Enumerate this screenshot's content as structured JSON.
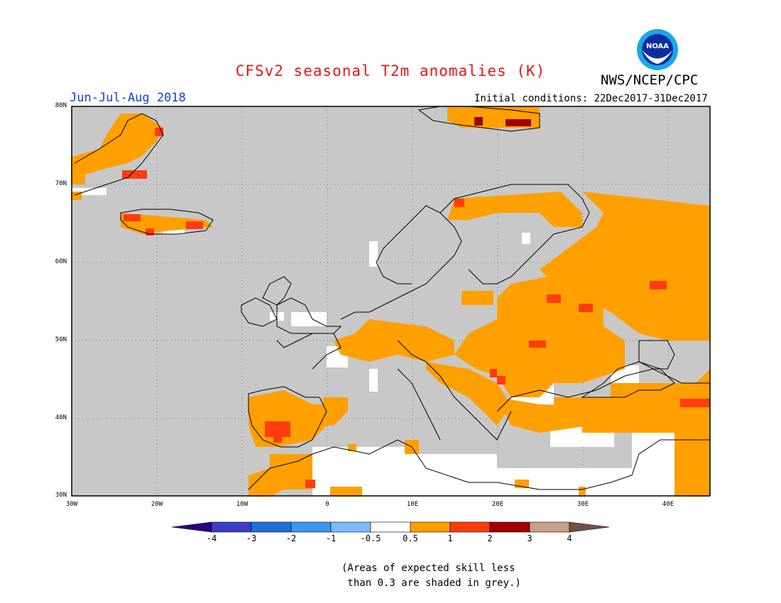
{
  "title": "CFSv2 seasonal T2m anomalies (K)",
  "agency": "NWS/NCEP/CPC",
  "logo_text": "NOAA",
  "season": "Jun-Jul-Aug 2018",
  "initial_conditions": "Initial conditions: 22Dec2017-31Dec2017",
  "lat_labels": [
    "80N",
    "70N",
    "60N",
    "50N",
    "40N",
    "30N"
  ],
  "lon_labels": [
    "30W",
    "20W",
    "10W",
    "0",
    "10E",
    "20E",
    "30E",
    "40E"
  ],
  "colorbar": {
    "ticks": [
      "-4",
      "-3",
      "-2",
      "-1",
      "-0.5",
      "0.5",
      "1",
      "2",
      "3",
      "4"
    ],
    "colors": [
      "#2e007f",
      "#3c3cc9",
      "#1f6fdc",
      "#3c96f0",
      "#7abcf5",
      "#ffffff",
      "#ffa000",
      "#ff3c10",
      "#a00000",
      "#c8a08c",
      "#73504a"
    ]
  },
  "colors": {
    "grey_shading": "#c8c8c8",
    "title_red": "#e8151a",
    "season_blue": "#1040e0"
  },
  "footnote": "(Areas of expected skill less\n than 0.3 are shaded in grey.)"
}
